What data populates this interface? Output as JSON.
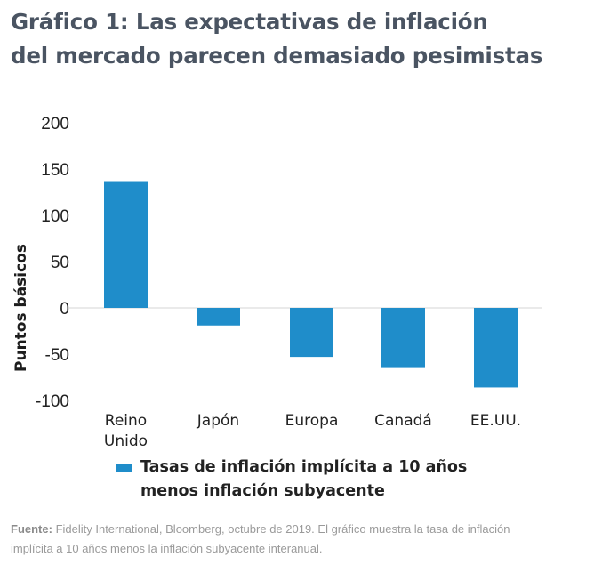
{
  "title": {
    "line1": "Gráfico 1: Las expectativas de inflación",
    "line2": "del mercado parecen demasiado pesimistas"
  },
  "colors": {
    "bar": "#1f8dca",
    "title": "#4a5462",
    "zero_line": "#dddddd"
  },
  "chart_data": {
    "type": "bar",
    "title": "Gráfico 1: Las expectativas de inflación del mercado parecen demasiado pesimistas",
    "categories": [
      [
        "Reino",
        "Unido"
      ],
      [
        "Japón"
      ],
      [
        "Europa"
      ],
      [
        "Canadá"
      ],
      [
        "EE.UU."
      ]
    ],
    "series": [
      {
        "name": "Tasas de inflación implícita a 10 años menos inflación subyacente",
        "values": [
          137,
          -19,
          -53,
          -65,
          -86
        ]
      }
    ],
    "xlabel": "",
    "ylabel": "Puntos básicos",
    "ylim": [
      -100,
      200
    ],
    "yticks": [
      200,
      150,
      100,
      50,
      0,
      -50,
      -100
    ],
    "grid": false,
    "legend": "bottom"
  },
  "legend": {
    "line1": "Tasas de inflación implícita a 10 años",
    "line2": "menos inflación subyacente"
  },
  "footnote": {
    "label": "Fuente:",
    "line1": " Fidelity International, Bloomberg, octubre de 2019. El gráfico muestra la tasa de inflación",
    "line2": "implícita a 10 años menos la inflación subyacente interanual."
  }
}
